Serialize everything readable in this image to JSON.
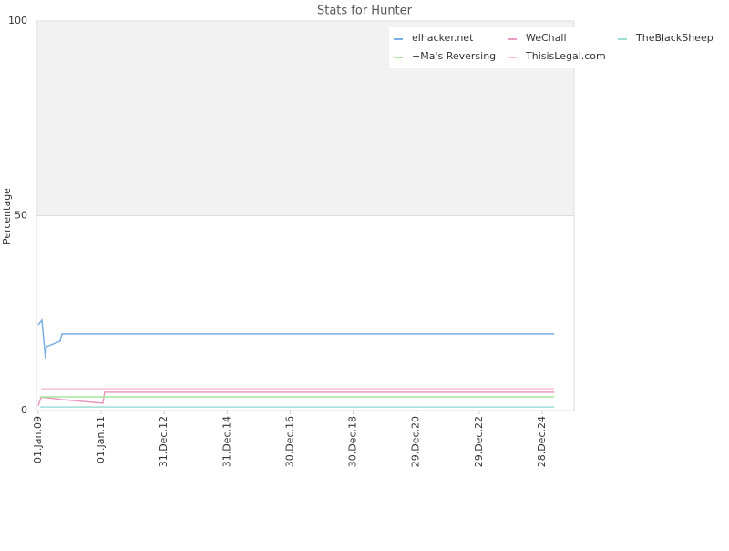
{
  "chart_data": {
    "type": "line",
    "title": "Stats for Hunter",
    "y_label": "Percentage",
    "x": [
      "01.Jan.09",
      "20.Jan.09",
      "05.Feb.09",
      "12.Feb.09",
      "26.Mar.09",
      "05.Apr.09",
      "12.Sep.09",
      "03.Oct.09",
      "20.Jan.11",
      "10.Feb.11",
      "17.May.25"
    ],
    "xlim": [
      "11.Dec.08",
      "02.Jan.26"
    ],
    "xticks": [
      "01.Jan.09",
      "01.Jan.11",
      "31.Dec.12",
      "31.Dec.14",
      "30.Dec.16",
      "30.Dec.18",
      "29.Dec.20",
      "29.Dec.22",
      "28.Dec.24"
    ],
    "ylim": [
      0,
      100
    ],
    "yticks": [
      0,
      50,
      100
    ],
    "grid": true,
    "series": [
      {
        "name": "elhacker.net",
        "color": "#7aaee6",
        "values": [
          22,
          22.6,
          23,
          23.2,
          13.3,
          16.4,
          17.8,
          19.7,
          19.7,
          19.7,
          19.7
        ]
      },
      {
        "name": "WeChall",
        "color": "#e89ac0",
        "values": [
          1.2,
          2.5,
          3.5,
          3.4,
          3.3,
          3.3,
          2.9,
          2.8,
          1.9,
          4.7,
          4.7
        ]
      },
      {
        "name": "TheBlackSheep",
        "color": "#9fdcd6",
        "values": [
          null,
          0.9,
          0.9,
          0.9,
          0.9,
          0.9,
          0.9,
          0.9,
          0.9,
          0.9,
          0.9
        ]
      },
      {
        "name": "+Ma's Reversing",
        "color": "#a8e6a0",
        "values": [
          null,
          3.5,
          3.5,
          3.5,
          3.5,
          3.5,
          3.5,
          3.5,
          3.5,
          3.5,
          3.5
        ]
      },
      {
        "name": "ThisisLegal.com",
        "color": "#f5c0d2",
        "values": [
          null,
          null,
          5.6,
          5.6,
          5.6,
          5.6,
          5.6,
          5.6,
          5.6,
          5.6,
          5.6
        ]
      }
    ]
  }
}
